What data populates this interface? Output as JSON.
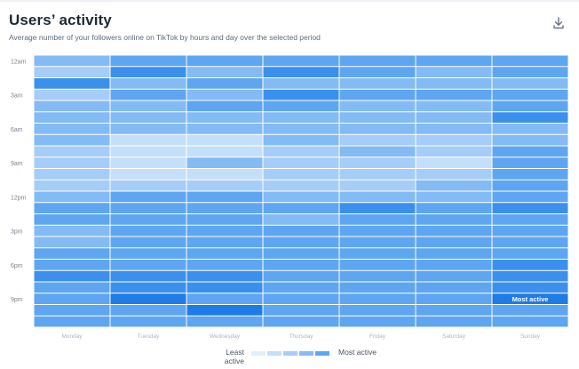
{
  "header": {
    "title": "Users’ activity",
    "subtitle": "Average number of your followers online on TikTok by hours and day over the selected period",
    "download_icon": "download-icon"
  },
  "legend": {
    "low_label": "Least active",
    "high_label": "Most active",
    "colors": [
      "#e2effd",
      "#c4dffa",
      "#a6cdf7",
      "#84bbf4",
      "#5ea6f1",
      "#3b90ed",
      "#1f7be6"
    ]
  },
  "chart_data": {
    "type": "heatmap",
    "title": "Users’ activity",
    "subtitle": "Average number of your followers online on TikTok by hours and day over the selected period",
    "x": [
      "Monday",
      "Tuesday",
      "Wednesday",
      "Thursday",
      "Friday",
      "Saturday",
      "Sunday"
    ],
    "y_tick_labels": [
      "12am",
      "3am",
      "6am",
      "9am",
      "12pm",
      "3pm",
      "6pm",
      "9pm"
    ],
    "y_tick_hours": [
      0,
      3,
      6,
      9,
      12,
      15,
      18,
      21
    ],
    "hours": [
      0,
      1,
      2,
      3,
      4,
      5,
      6,
      7,
      8,
      9,
      10,
      11,
      12,
      13,
      14,
      15,
      16,
      17,
      18,
      19,
      20,
      21,
      22,
      23
    ],
    "value_scale": "relative activity level, 1 = least active, 7 = most active",
    "values": [
      [
        4,
        5,
        5,
        5,
        5,
        5,
        5
      ],
      [
        3,
        6,
        4,
        6,
        5,
        4,
        5
      ],
      [
        6,
        4,
        5,
        4,
        4,
        4,
        4
      ],
      [
        3,
        5,
        4,
        6,
        5,
        5,
        5
      ],
      [
        4,
        4,
        5,
        5,
        4,
        4,
        5
      ],
      [
        4,
        4,
        4,
        4,
        4,
        4,
        6
      ],
      [
        4,
        4,
        4,
        4,
        4,
        4,
        4
      ],
      [
        4,
        2,
        2,
        4,
        3,
        3,
        4
      ],
      [
        3,
        2,
        2,
        3,
        4,
        3,
        5
      ],
      [
        3,
        2,
        4,
        3,
        3,
        2,
        5
      ],
      [
        3,
        2,
        2,
        3,
        3,
        3,
        5
      ],
      [
        3,
        3,
        3,
        3,
        3,
        4,
        5
      ],
      [
        4,
        5,
        5,
        4,
        4,
        4,
        5
      ],
      [
        5,
        5,
        5,
        5,
        6,
        5,
        6
      ],
      [
        5,
        5,
        5,
        4,
        5,
        5,
        5
      ],
      [
        4,
        5,
        5,
        5,
        5,
        5,
        5
      ],
      [
        4,
        5,
        5,
        5,
        5,
        5,
        5
      ],
      [
        5,
        5,
        5,
        5,
        5,
        5,
        5
      ],
      [
        5,
        5,
        5,
        5,
        5,
        5,
        6
      ],
      [
        6,
        6,
        6,
        5,
        5,
        5,
        6
      ],
      [
        5,
        6,
        6,
        5,
        5,
        5,
        6
      ],
      [
        5,
        7,
        5,
        5,
        5,
        5,
        7
      ],
      [
        5,
        5,
        7,
        5,
        5,
        5,
        5
      ],
      [
        5,
        5,
        5,
        5,
        5,
        5,
        5
      ]
    ],
    "max_annotation": {
      "label": "Most active",
      "day": "Sunday",
      "hour": 21
    },
    "grid": true,
    "legend_position": "bottom-center"
  }
}
